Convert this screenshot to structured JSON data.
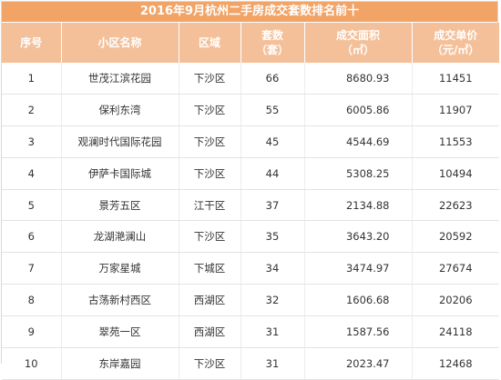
{
  "title": "2016年9月杭州二手房成交套数排名前十",
  "headers": {
    "rank": "序号",
    "name": "小区名称",
    "district": "区域",
    "units_1": "套数",
    "units_2": "（套）",
    "area_1": "成交面积",
    "area_2": "（㎡）",
    "price_1": "成交单价",
    "price_2": "（元/㎡）"
  },
  "rows": [
    {
      "rank": "1",
      "name": "世茂江滨花园",
      "district": "下沙区",
      "units": "66",
      "area": "8680.93",
      "price": "11451"
    },
    {
      "rank": "2",
      "name": "保利东湾",
      "district": "下沙区",
      "units": "55",
      "area": "6005.86",
      "price": "11907"
    },
    {
      "rank": "3",
      "name": "观澜时代国际花园",
      "district": "下沙区",
      "units": "45",
      "area": "4544.69",
      "price": "11553"
    },
    {
      "rank": "4",
      "name": "伊萨卡国际城",
      "district": "下沙区",
      "units": "44",
      "area": "5308.25",
      "price": "10494"
    },
    {
      "rank": "5",
      "name": "景芳五区",
      "district": "江干区",
      "units": "37",
      "area": "2134.88",
      "price": "22623"
    },
    {
      "rank": "6",
      "name": "龙湖滟澜山",
      "district": "下沙区",
      "units": "35",
      "area": "3643.20",
      "price": "20592"
    },
    {
      "rank": "7",
      "name": "万家星城",
      "district": "下城区",
      "units": "34",
      "area": "3474.97",
      "price": "27674"
    },
    {
      "rank": "8",
      "name": "古荡新村西区",
      "district": "西湖区",
      "units": "32",
      "area": "1606.68",
      "price": "20206"
    },
    {
      "rank": "9",
      "name": "翠苑一区",
      "district": "西湖区",
      "units": "31",
      "area": "1587.56",
      "price": "24118"
    },
    {
      "rank": "10",
      "name": "东岸嘉园",
      "district": "下沙区",
      "units": "31",
      "area": "2023.47",
      "price": "12468"
    }
  ]
}
